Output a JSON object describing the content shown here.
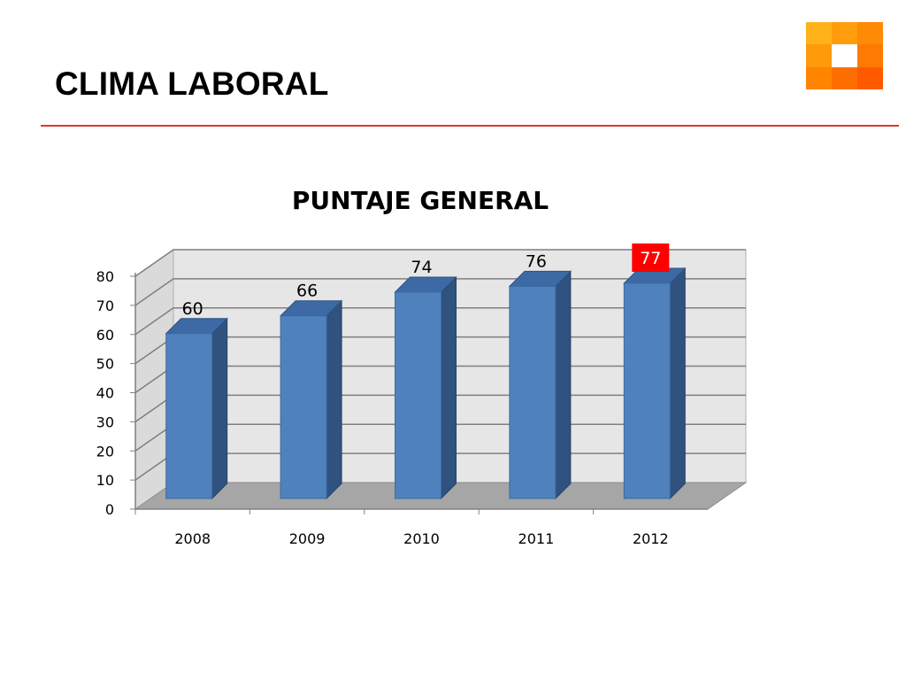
{
  "slide": {
    "title": "CLIMA LABORAL",
    "accent_color": "#d63a2f",
    "logo": "orange-tile-grid-logo"
  },
  "chart_data": {
    "type": "bar",
    "style": "3d-column",
    "title": "PUNTAJE GENERAL",
    "categories": [
      "2008",
      "2009",
      "2010",
      "2011",
      "2012"
    ],
    "series": [
      {
        "values": [
          60,
          66,
          74,
          76,
          77
        ],
        "color": "#4f81bd"
      }
    ],
    "data_labels": [
      "60",
      "66",
      "74",
      "76",
      "77"
    ],
    "highlighted_label": {
      "index": 4,
      "background": "#ff0000",
      "text_color": "#ffffff"
    },
    "y_ticks": [
      "0",
      "10",
      "20",
      "30",
      "40",
      "50",
      "60",
      "70",
      "80"
    ],
    "ylim": [
      0,
      80
    ],
    "grid": true,
    "legend": "none"
  }
}
